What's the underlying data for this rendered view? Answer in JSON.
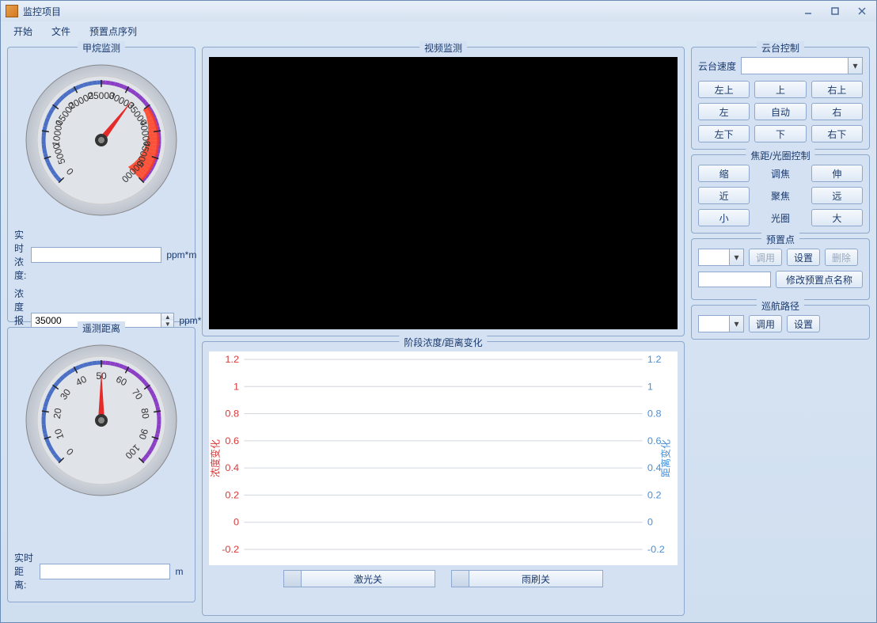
{
  "window": {
    "title": "监控项目"
  },
  "menu": {
    "start": "开始",
    "file": "文件",
    "preset_seq": "预置点序列"
  },
  "methane": {
    "title": "甲烷监测",
    "gauge": {
      "min": 0,
      "max": 50000,
      "ticks": [
        0,
        5000,
        10000,
        15000,
        20000,
        25000,
        30000,
        35000,
        40000,
        45000,
        50000
      ],
      "needle_value": 32000,
      "arc_start_color": "#4a6fc4",
      "arc_end_color": "#8a3fc4",
      "warning_color": "#ff3a1a",
      "face_color": "#e0e3e8",
      "rim_color": "#bcc2cc"
    },
    "realtime_label": "实时浓度:",
    "realtime_value": "",
    "unit": "ppm*m",
    "alarm_label": "浓度报警值:",
    "alarm_value": "35000"
  },
  "distance": {
    "title": "遥测距离",
    "gauge": {
      "min": 0,
      "max": 100,
      "ticks": [
        0,
        10,
        20,
        30,
        40,
        50,
        60,
        70,
        80,
        90,
        100
      ],
      "needle_value": 50,
      "arc_start_color": "#4a6fc4",
      "arc_end_color": "#8a3fc4",
      "face_color": "#e0e3e8",
      "rim_color": "#bcc2cc"
    },
    "realtime_label": "实时距离:",
    "realtime_value": "",
    "unit": "m"
  },
  "video": {
    "title": "视频监测"
  },
  "chart": {
    "title": "阶段浓度/距离变化",
    "left_axis_label": "浓度变化",
    "right_axis_label": "距离变化",
    "left_color": "#d63a3a",
    "right_color": "#4a8fd6",
    "grid_color": "#d0d6de",
    "y_ticks": [
      -0.2,
      0,
      0.2,
      0.4,
      0.6,
      0.8,
      1,
      1.2
    ],
    "ylim": [
      -0.2,
      1.2
    ]
  },
  "toggles": {
    "laser": "激光关",
    "wiper": "雨刷关"
  },
  "ptz": {
    "title": "云台控制",
    "speed_label": "云台速度",
    "speed_value": "",
    "buttons": {
      "ul": "左上",
      "u": "上",
      "ur": "右上",
      "l": "左",
      "auto": "自动",
      "r": "右",
      "dl": "左下",
      "d": "下",
      "dr": "右下"
    }
  },
  "focus": {
    "title": "焦距/光圈控制",
    "zoom_in": "缩",
    "zoom_label": "调焦",
    "zoom_out": "伸",
    "focus_near": "近",
    "focus_label": "聚焦",
    "focus_far": "远",
    "iris_small": "小",
    "iris_label": "光圈",
    "iris_large": "大"
  },
  "preset": {
    "title": "预置点",
    "call": "调用",
    "set": "设置",
    "delete": "删除",
    "rename": "修改预置点名称",
    "name_value": "",
    "selected": ""
  },
  "cruise": {
    "title": "巡航路径",
    "call": "调用",
    "set": "设置",
    "selected": ""
  }
}
